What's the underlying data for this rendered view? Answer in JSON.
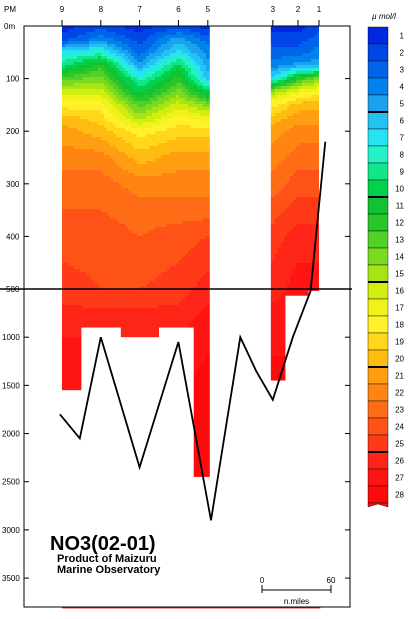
{
  "chart_data": {
    "type": "heatmap",
    "title": "NO3(02-01)",
    "subtitle_lines": [
      "Product of Maizuru",
      "Marine Observatory"
    ],
    "top_axis": {
      "prefix": "PM",
      "stations": [
        {
          "label": "9",
          "distance": 0
        },
        {
          "label": "8",
          "distance": 37
        },
        {
          "label": "7",
          "distance": 74
        },
        {
          "label": "6",
          "distance": 111
        },
        {
          "label": "5",
          "distance": 139
        },
        {
          "label": "3",
          "distance": 201
        },
        {
          "label": "2",
          "distance": 225
        },
        {
          "label": "1",
          "distance": 245
        }
      ]
    },
    "y_axis": {
      "label": "0m",
      "reverse": true,
      "upper_panel": {
        "range": [
          0,
          500
        ],
        "ticks": [
          "0m",
          "100",
          "200",
          "300",
          "400",
          "500"
        ]
      },
      "lower_panel": {
        "range": [
          500,
          3800
        ],
        "ticks": [
          "1000",
          "1500",
          "2000",
          "2500",
          "3000",
          "3500"
        ]
      }
    },
    "colorbar": {
      "unit": "µ mol/l",
      "levels": [
        1,
        2,
        3,
        4,
        5,
        6,
        7,
        8,
        9,
        10,
        11,
        12,
        13,
        14,
        15,
        16,
        17,
        18,
        19,
        20,
        21,
        22,
        23,
        24,
        25,
        26,
        27,
        28
      ],
      "colors": [
        "#0028e0",
        "#0046e6",
        "#0064ea",
        "#0082ec",
        "#1aa2ee",
        "#22c2f2",
        "#26e2f2",
        "#22f2c6",
        "#12e68a",
        "#00d24c",
        "#10c234",
        "#28c628",
        "#50d028",
        "#7ada20",
        "#a8e414",
        "#d2ee10",
        "#f0f21a",
        "#fff22a",
        "#ffd81c",
        "#ffbc10",
        "#ff9e10",
        "#ff8412",
        "#ff6c16",
        "#ff5216",
        "#ff3a18",
        "#ff2418",
        "#ff1414",
        "#ff0a0a"
      ],
      "bold_levels": [
        5,
        10,
        15,
        20,
        25
      ]
    },
    "scale_bar": {
      "start": "0",
      "end": "60",
      "unit": "n.miles"
    },
    "section": {
      "station_distances": [
        0,
        37,
        74,
        111,
        139,
        201,
        225,
        245
      ],
      "depths": [
        0,
        25,
        50,
        75,
        100,
        125,
        150,
        175,
        200,
        250,
        300,
        350,
        400,
        500,
        800,
        1200,
        1600,
        2000,
        2500,
        3000
      ],
      "values": [
        [
          1,
          2,
          1,
          2,
          1,
          1,
          1,
          2
        ],
        [
          2,
          4,
          2,
          5,
          3,
          2,
          2,
          3
        ],
        [
          7,
          8,
          3,
          7,
          4,
          3,
          3,
          4
        ],
        [
          9,
          12,
          5,
          10,
          5,
          4,
          5,
          5
        ],
        [
          13,
          14,
          8,
          12,
          6,
          7,
          12,
          14
        ],
        [
          16,
          16,
          10,
          14,
          10,
          15,
          17,
          18
        ],
        [
          18,
          18,
          13,
          16,
          14,
          18,
          20,
          20
        ],
        [
          20,
          19,
          15,
          18,
          17,
          20,
          21,
          21
        ],
        [
          21,
          20,
          18,
          19,
          19,
          21,
          22,
          22
        ],
        [
          22,
          22,
          20,
          21,
          21,
          22,
          23,
          23
        ],
        [
          23,
          23,
          22,
          22,
          22,
          23,
          24,
          24
        ],
        [
          23.5,
          23.5,
          23,
          23,
          23,
          24,
          25,
          25
        ],
        [
          24,
          24,
          23.5,
          24,
          24.5,
          25,
          26,
          26
        ],
        [
          25,
          24.5,
          24.5,
          25,
          26,
          26,
          27,
          27
        ],
        [
          26,
          26,
          26,
          26,
          27,
          27,
          27,
          27
        ],
        [
          27,
          27,
          27,
          27,
          27.5,
          27.5,
          27.5,
          27.5
        ],
        [
          27.5,
          27.5,
          27.5,
          27.5,
          28,
          28,
          28,
          28
        ],
        [
          27.8,
          27.8,
          27.8,
          27.8,
          28,
          28,
          28,
          28
        ],
        [
          28,
          28,
          28,
          28,
          28,
          28,
          28,
          28
        ],
        [
          28,
          28,
          28,
          28,
          28,
          28,
          28,
          28
        ]
      ],
      "sampled_bottom_depth": [
        1550,
        900,
        1000,
        900,
        2450,
        1450,
        570,
        520
      ],
      "seafloor": [
        {
          "distance": -2,
          "depth": 1800
        },
        {
          "distance": 17,
          "depth": 2050
        },
        {
          "distance": 37,
          "depth": 1000
        },
        {
          "distance": 74,
          "depth": 2350
        },
        {
          "distance": 111,
          "depth": 1050
        },
        {
          "distance": 142,
          "depth": 2900
        },
        {
          "distance": 170,
          "depth": 1000
        },
        {
          "distance": 185,
          "depth": 1350
        },
        {
          "distance": 201,
          "depth": 1650
        },
        {
          "distance": 220,
          "depth": 1000
        },
        {
          "distance": 237,
          "depth": 520
        },
        {
          "distance": 251,
          "depth": 220
        }
      ],
      "gap": [
        139,
        201
      ]
    }
  }
}
